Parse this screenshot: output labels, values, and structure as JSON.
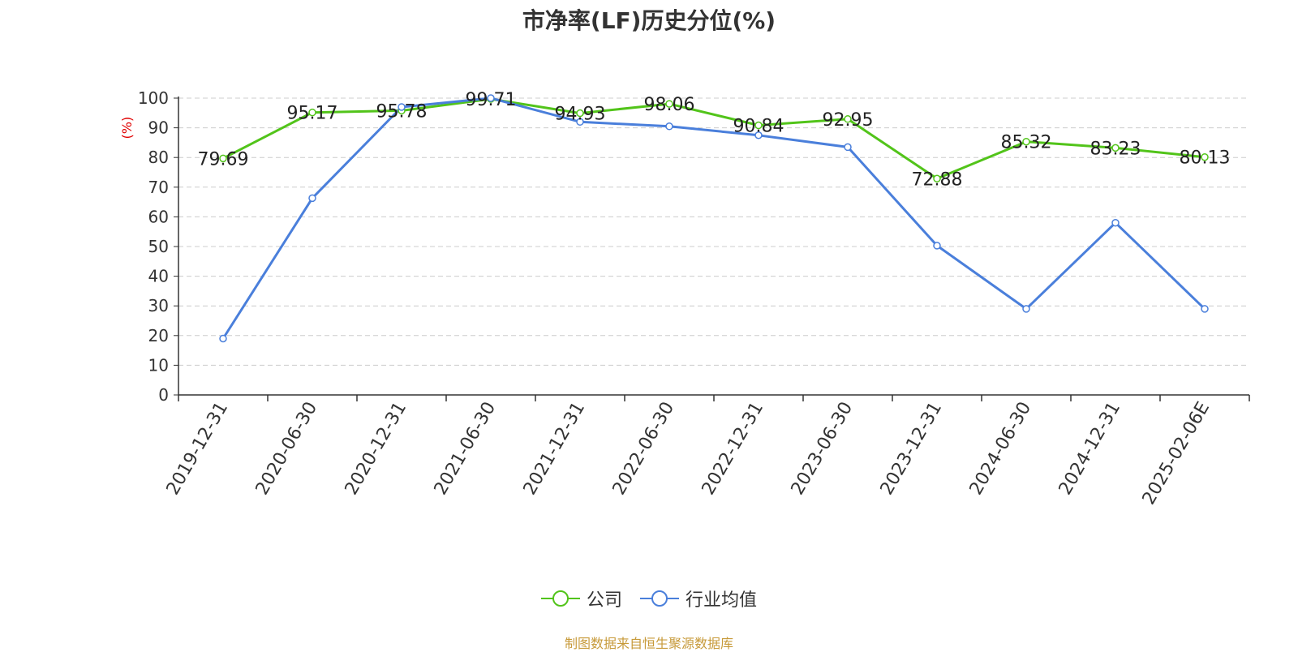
{
  "title": "市净率(LF)历史分位(%)",
  "source_note": "制图数据来自恒生聚源数据库",
  "chart_data": {
    "type": "line",
    "title": "市净率(LF)历史分位(%)",
    "ylabel": "(%)",
    "xlabel": "",
    "ylim": [
      0,
      100
    ],
    "y_ticks": [
      0,
      10,
      20,
      30,
      40,
      50,
      60,
      70,
      80,
      90,
      100
    ],
    "grid": "horizontal dashed",
    "legend_position": "bottom-center",
    "categories": [
      "2019-12-31",
      "2020-06-30",
      "2020-12-31",
      "2021-06-30",
      "2021-12-31",
      "2022-06-30",
      "2022-12-31",
      "2023-06-30",
      "2023-12-31",
      "2024-06-30",
      "2024-12-31",
      "2025-02-06E"
    ],
    "series": [
      {
        "name": "公司",
        "color": "#52c41a",
        "show_labels": true,
        "values": [
          79.69,
          95.17,
          95.78,
          99.71,
          94.93,
          98.06,
          90.84,
          92.95,
          72.88,
          85.32,
          83.23,
          80.13
        ]
      },
      {
        "name": "行业均值",
        "color": "#4a7fdb",
        "show_labels": false,
        "values": [
          19.0,
          66.3,
          97.0,
          100.0,
          92.0,
          90.5,
          87.5,
          83.5,
          50.3,
          29.0,
          58.0,
          29.0
        ]
      }
    ]
  }
}
